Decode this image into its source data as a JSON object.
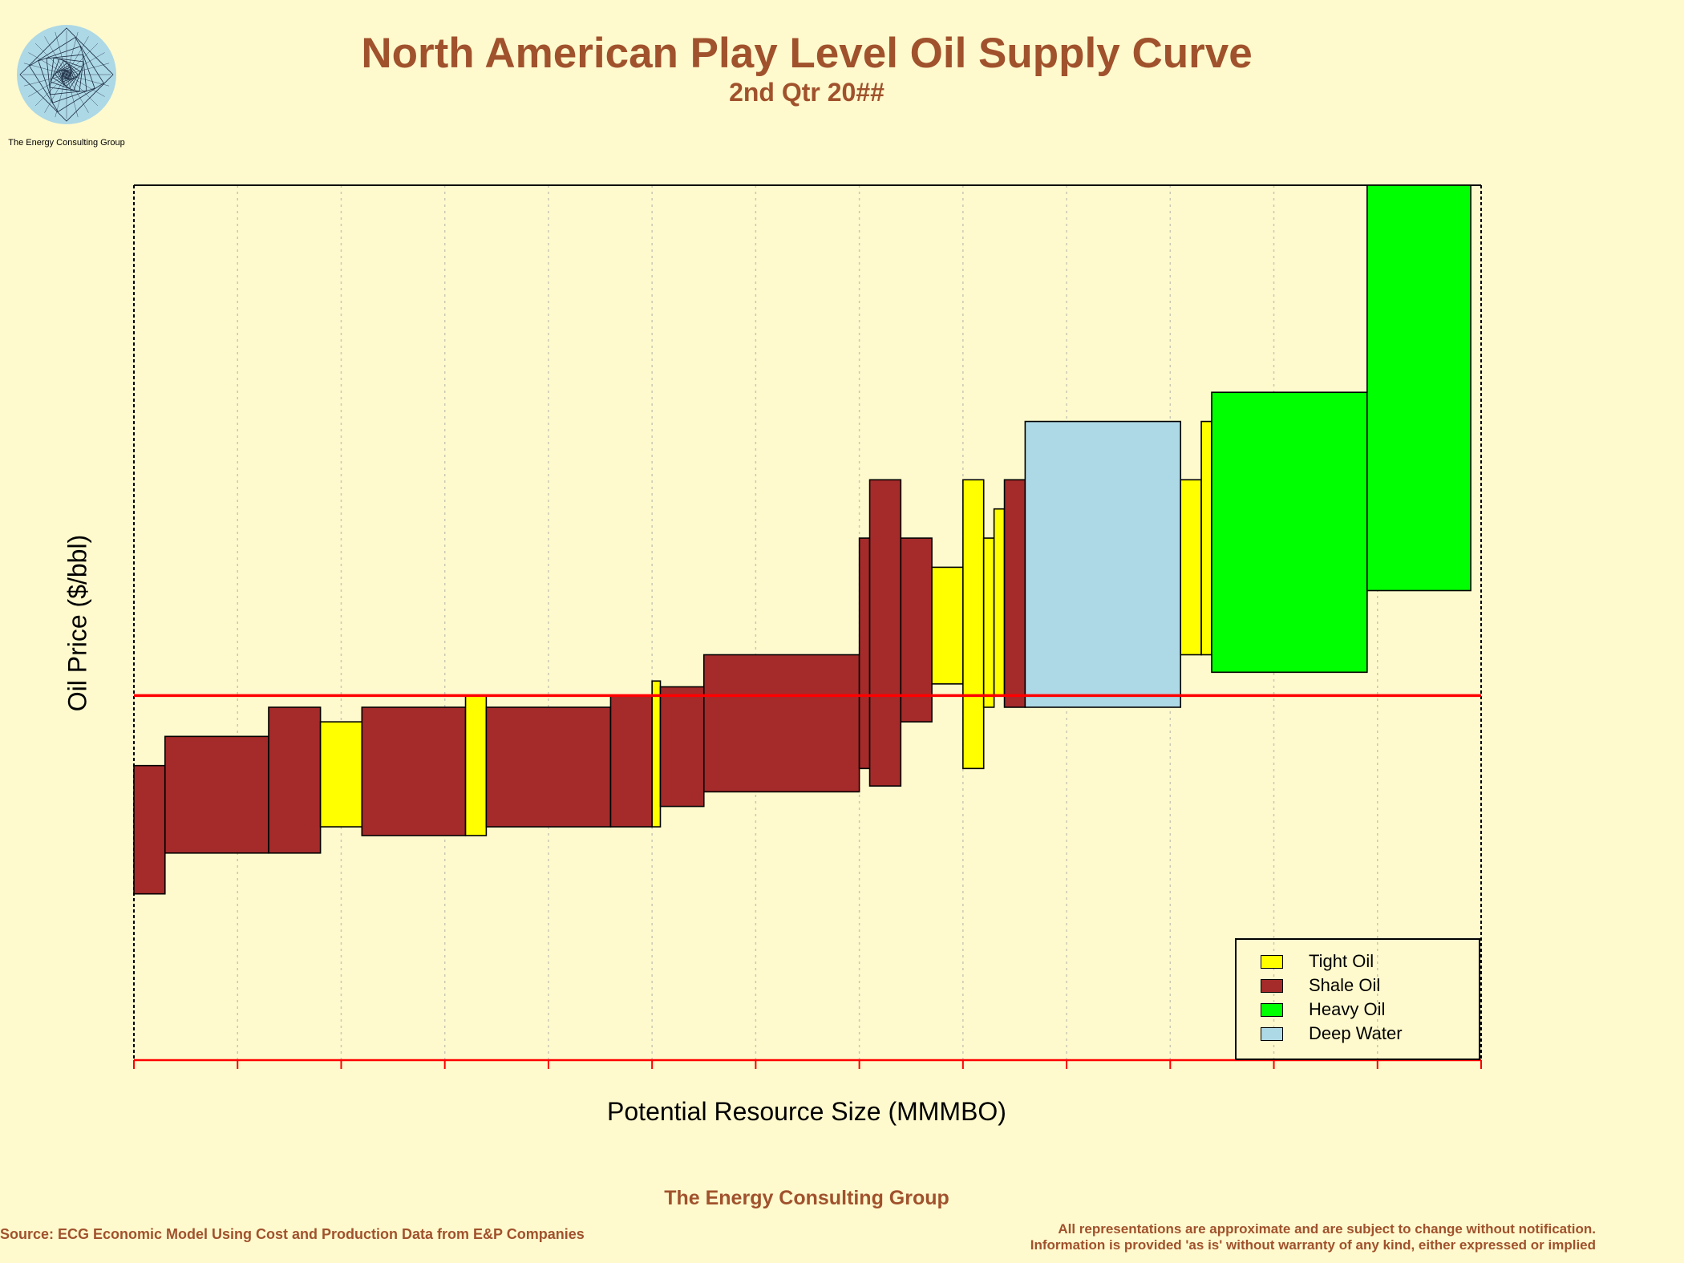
{
  "header": {
    "title": "North American Play Level Oil Supply Curve",
    "subtitle": "2nd Qtr 20##"
  },
  "logo": {
    "text": "The Energy Consulting Group"
  },
  "footer": {
    "organization": "The Energy Consulting Group",
    "source": "Source: ECG Economic Model Using Cost and Production Data from E&P Companies",
    "disclaimer_line1": "All representations are approximate and are subject to change without notification.",
    "disclaimer_line2": "Information is provided 'as is' without warranty of any kind, either expressed or implied"
  },
  "colors": {
    "background": "#FFFACD",
    "title": "#A0522D",
    "reference_line": "#FF0000",
    "tight_oil": "#FFFF00",
    "shale_oil": "#A52A2A",
    "heavy_oil": "#00FF00",
    "deep_water": "#ADD8E6"
  },
  "chart_data": {
    "type": "bar",
    "title": "North American Play Level Oil Supply Curve",
    "subtitle": "2nd Qtr 20##",
    "xlabel": "Potential Resource Size (MMMBO)",
    "ylabel": "Oil Price ($/bbl)",
    "tick_labels_shown": false,
    "xlim": [
      0,
      13
    ],
    "ylim": [
      0,
      15
    ],
    "x_grid": "dotted vertical every 1 unit",
    "legend_position": "bottom-right",
    "reference_line_y": 6.25,
    "legend": [
      {
        "key": "tight",
        "label": "Tight Oil"
      },
      {
        "key": "shale",
        "label": "Shale Oil"
      },
      {
        "key": "heavy",
        "label": "Heavy Oil"
      },
      {
        "key": "deep",
        "label": "Deep Water"
      }
    ],
    "plays": [
      {
        "type": "shale",
        "x0": 0.0,
        "x1": 0.3,
        "low": 2.85,
        "high": 5.05
      },
      {
        "type": "shale",
        "x0": 0.3,
        "x1": 1.3,
        "low": 3.55,
        "high": 5.55
      },
      {
        "type": "shale",
        "x0": 1.3,
        "x1": 1.8,
        "low": 3.55,
        "high": 6.05
      },
      {
        "type": "tight",
        "x0": 1.8,
        "x1": 2.2,
        "low": 4.0,
        "high": 5.8
      },
      {
        "type": "shale",
        "x0": 2.2,
        "x1": 3.2,
        "low": 3.85,
        "high": 6.05
      },
      {
        "type": "tight",
        "x0": 3.2,
        "x1": 3.4,
        "low": 3.85,
        "high": 6.25
      },
      {
        "type": "shale",
        "x0": 3.4,
        "x1": 4.6,
        "low": 4.0,
        "high": 6.05
      },
      {
        "type": "shale",
        "x0": 4.6,
        "x1": 5.0,
        "low": 4.0,
        "high": 6.25
      },
      {
        "type": "tight",
        "x0": 5.0,
        "x1": 5.08,
        "low": 4.0,
        "high": 6.5
      },
      {
        "type": "shale",
        "x0": 5.08,
        "x1": 5.5,
        "low": 4.35,
        "high": 6.4
      },
      {
        "type": "shale",
        "x0": 5.5,
        "x1": 7.0,
        "low": 4.6,
        "high": 6.95
      },
      {
        "type": "shale",
        "x0": 7.0,
        "x1": 7.1,
        "low": 5.0,
        "high": 8.95
      },
      {
        "type": "shale",
        "x0": 7.1,
        "x1": 7.4,
        "low": 4.7,
        "high": 9.95
      },
      {
        "type": "shale",
        "x0": 7.4,
        "x1": 7.7,
        "low": 5.8,
        "high": 8.95
      },
      {
        "type": "tight",
        "x0": 7.7,
        "x1": 8.0,
        "low": 6.45,
        "high": 8.45
      },
      {
        "type": "tight",
        "x0": 8.0,
        "x1": 8.2,
        "low": 5.0,
        "high": 9.95
      },
      {
        "type": "tight",
        "x0": 8.2,
        "x1": 8.3,
        "low": 6.05,
        "high": 8.95
      },
      {
        "type": "tight",
        "x0": 8.3,
        "x1": 8.4,
        "low": 6.25,
        "high": 9.45
      },
      {
        "type": "shale",
        "x0": 8.4,
        "x1": 8.6,
        "low": 6.05,
        "high": 9.95
      },
      {
        "type": "deep",
        "x0": 8.6,
        "x1": 10.1,
        "low": 6.05,
        "high": 10.95
      },
      {
        "type": "tight",
        "x0": 10.1,
        "x1": 10.3,
        "low": 6.95,
        "high": 9.95
      },
      {
        "type": "tight",
        "x0": 10.3,
        "x1": 10.4,
        "low": 6.95,
        "high": 10.95
      },
      {
        "type": "heavy",
        "x0": 10.4,
        "x1": 11.9,
        "low": 6.65,
        "high": 11.45
      },
      {
        "type": "heavy",
        "x0": 11.9,
        "x1": 12.9,
        "low": 8.05,
        "high": 15.0
      }
    ]
  }
}
